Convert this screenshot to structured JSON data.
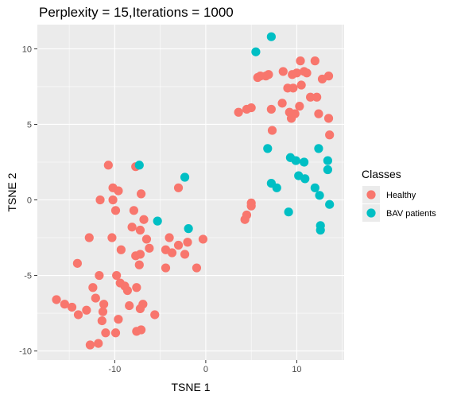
{
  "chart_data": {
    "type": "scatter",
    "title": "Perplexity = 15,Iterations = 1000",
    "xlabel": "TSNE 1",
    "ylabel": "TSNE 2",
    "xlim": [
      -18.5,
      15.2
    ],
    "ylim": [
      -10.6,
      11.6
    ],
    "x_ticks": [
      -10,
      0,
      10
    ],
    "x_tick_labels": [
      "-10",
      "0",
      "10"
    ],
    "y_ticks": [
      -10,
      -5,
      0,
      5,
      10
    ],
    "y_tick_labels": [
      "-10",
      "-5",
      "0",
      "5",
      "10"
    ],
    "grid": true,
    "legend": {
      "title": "Classes",
      "placement": "right"
    },
    "series": [
      {
        "name": "Healthy",
        "color": "#F8766D",
        "points": [
          [
            -10.7,
            2.3
          ],
          [
            -7.7,
            2.2
          ],
          [
            -10.2,
            0.8
          ],
          [
            -9.6,
            0.6
          ],
          [
            -7.1,
            0.4
          ],
          [
            -11.6,
            0.0
          ],
          [
            -10.2,
            0.0
          ],
          [
            -3.0,
            0.8
          ],
          [
            -9.9,
            -0.7
          ],
          [
            -7.9,
            -0.7
          ],
          [
            -6.8,
            -1.3
          ],
          [
            -8.1,
            -1.8
          ],
          [
            -7.2,
            -2.0
          ],
          [
            -12.8,
            -2.5
          ],
          [
            -10.3,
            -2.5
          ],
          [
            -6.5,
            -2.6
          ],
          [
            -4.0,
            -2.5
          ],
          [
            -2.0,
            -2.8
          ],
          [
            -0.3,
            -2.6
          ],
          [
            -3.0,
            -3.0
          ],
          [
            -6.2,
            -3.2
          ],
          [
            -9.3,
            -3.3
          ],
          [
            -4.4,
            -3.3
          ],
          [
            -3.7,
            -3.5
          ],
          [
            -7.7,
            -3.7
          ],
          [
            -7.2,
            -3.6
          ],
          [
            -2.3,
            -3.6
          ],
          [
            -14.1,
            -4.2
          ],
          [
            -7.3,
            -4.3
          ],
          [
            -4.4,
            -4.5
          ],
          [
            -1.0,
            -4.5
          ],
          [
            -11.7,
            -5.0
          ],
          [
            -9.8,
            -5.0
          ],
          [
            -9.4,
            -5.5
          ],
          [
            -8.9,
            -5.7
          ],
          [
            -8.6,
            -6.0
          ],
          [
            -7.6,
            -5.8
          ],
          [
            -12.4,
            -5.8
          ],
          [
            -12.1,
            -6.5
          ],
          [
            -11.2,
            -6.9
          ],
          [
            -16.4,
            -6.6
          ],
          [
            -15.5,
            -6.9
          ],
          [
            -14.7,
            -7.1
          ],
          [
            -14.0,
            -7.6
          ],
          [
            -13.1,
            -7.3
          ],
          [
            -11.3,
            -7.4
          ],
          [
            -8.4,
            -7.0
          ],
          [
            -6.9,
            -6.9
          ],
          [
            -7.2,
            -7.2
          ],
          [
            -11.4,
            -8.0
          ],
          [
            -9.6,
            -7.9
          ],
          [
            -5.6,
            -7.6
          ],
          [
            -9.9,
            -8.8
          ],
          [
            -11.0,
            -8.8
          ],
          [
            -7.6,
            -8.7
          ],
          [
            -7.1,
            -8.6
          ],
          [
            -12.7,
            -9.6
          ],
          [
            -11.8,
            -9.5
          ],
          [
            4.5,
            -1.0
          ],
          [
            4.3,
            -1.3
          ],
          [
            5.0,
            -0.2
          ],
          [
            5.0,
            -0.4
          ],
          [
            3.6,
            5.8
          ],
          [
            4.5,
            6.0
          ],
          [
            5.0,
            6.1
          ],
          [
            5.7,
            8.1
          ],
          [
            6.0,
            8.2
          ],
          [
            6.6,
            8.2
          ],
          [
            6.9,
            8.3
          ],
          [
            8.5,
            8.5
          ],
          [
            9.5,
            8.3
          ],
          [
            10.0,
            8.4
          ],
          [
            10.4,
            9.2
          ],
          [
            10.8,
            8.5
          ],
          [
            11.1,
            8.4
          ],
          [
            12.0,
            9.2
          ],
          [
            12.8,
            8.0
          ],
          [
            13.5,
            8.2
          ],
          [
            9.0,
            7.4
          ],
          [
            9.6,
            7.4
          ],
          [
            10.5,
            7.6
          ],
          [
            8.4,
            6.4
          ],
          [
            9.2,
            5.8
          ],
          [
            7.2,
            6.0
          ],
          [
            9.4,
            5.4
          ],
          [
            9.8,
            5.7
          ],
          [
            10.3,
            6.2
          ],
          [
            11.5,
            6.8
          ],
          [
            12.2,
            6.8
          ],
          [
            12.4,
            5.7
          ],
          [
            13.5,
            5.4
          ],
          [
            13.6,
            4.3
          ],
          [
            7.3,
            4.6
          ]
        ]
      },
      {
        "name": "BAV patients",
        "color": "#00BFC4",
        "points": [
          [
            7.2,
            10.8
          ],
          [
            5.5,
            9.8
          ],
          [
            -7.3,
            2.3
          ],
          [
            -2.3,
            1.5
          ],
          [
            -5.3,
            -1.4
          ],
          [
            -1.9,
            -1.9
          ],
          [
            6.8,
            3.4
          ],
          [
            9.3,
            2.8
          ],
          [
            9.9,
            2.6
          ],
          [
            13.4,
            2.6
          ],
          [
            13.4,
            2.0
          ],
          [
            12.4,
            3.4
          ],
          [
            10.8,
            2.5
          ],
          [
            7.2,
            1.1
          ],
          [
            7.8,
            0.8
          ],
          [
            10.2,
            1.6
          ],
          [
            10.9,
            1.4
          ],
          [
            12.0,
            0.8
          ],
          [
            12.5,
            0.3
          ],
          [
            13.6,
            -0.3
          ],
          [
            9.1,
            -0.8
          ],
          [
            12.6,
            -1.7
          ],
          [
            12.6,
            -2.0
          ]
        ]
      }
    ]
  }
}
